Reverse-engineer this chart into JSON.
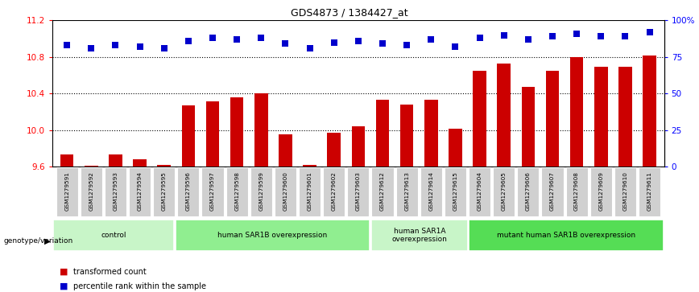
{
  "title": "GDS4873 / 1384427_at",
  "samples": [
    "GSM1279591",
    "GSM1279592",
    "GSM1279593",
    "GSM1279594",
    "GSM1279595",
    "GSM1279596",
    "GSM1279597",
    "GSM1279598",
    "GSM1279599",
    "GSM1279600",
    "GSM1279601",
    "GSM1279602",
    "GSM1279603",
    "GSM1279612",
    "GSM1279613",
    "GSM1279614",
    "GSM1279615",
    "GSM1279604",
    "GSM1279605",
    "GSM1279606",
    "GSM1279607",
    "GSM1279608",
    "GSM1279609",
    "GSM1279610",
    "GSM1279611"
  ],
  "bar_values": [
    9.73,
    9.61,
    9.73,
    9.68,
    9.62,
    10.27,
    10.31,
    10.36,
    10.4,
    9.95,
    9.62,
    9.97,
    10.04,
    10.33,
    10.28,
    10.33,
    10.01,
    10.65,
    10.73,
    10.47,
    10.65,
    10.8,
    10.69,
    10.69,
    10.82
  ],
  "percentile_values": [
    83,
    81,
    83,
    82,
    81,
    86,
    88,
    87,
    88,
    84,
    81,
    85,
    86,
    84,
    83,
    87,
    82,
    88,
    90,
    87,
    89,
    91,
    89,
    89,
    92
  ],
  "bar_color": "#cc0000",
  "dot_color": "#0000cc",
  "ylim_left": [
    9.6,
    11.2
  ],
  "ylim_right": [
    0,
    100
  ],
  "yticks_left": [
    9.6,
    10.0,
    10.4,
    10.8,
    11.2
  ],
  "yticks_right": [
    0,
    25,
    50,
    75,
    100
  ],
  "grid_values": [
    10.0,
    10.4,
    10.8
  ],
  "groups": [
    {
      "label": "control",
      "start": 0,
      "end": 5,
      "color": "#c8f5c8"
    },
    {
      "label": "human SAR1B overexpression",
      "start": 5,
      "end": 13,
      "color": "#90ee90"
    },
    {
      "label": "human SAR1A\noverexpression",
      "start": 13,
      "end": 17,
      "color": "#c8f5c8"
    },
    {
      "label": "mutant human SAR1B overexpression",
      "start": 17,
      "end": 25,
      "color": "#55dd55"
    }
  ],
  "genotype_label": "genotype/variation",
  "legend_bar_label": "transformed count",
  "legend_dot_label": "percentile rank within the sample",
  "bar_width": 0.55
}
